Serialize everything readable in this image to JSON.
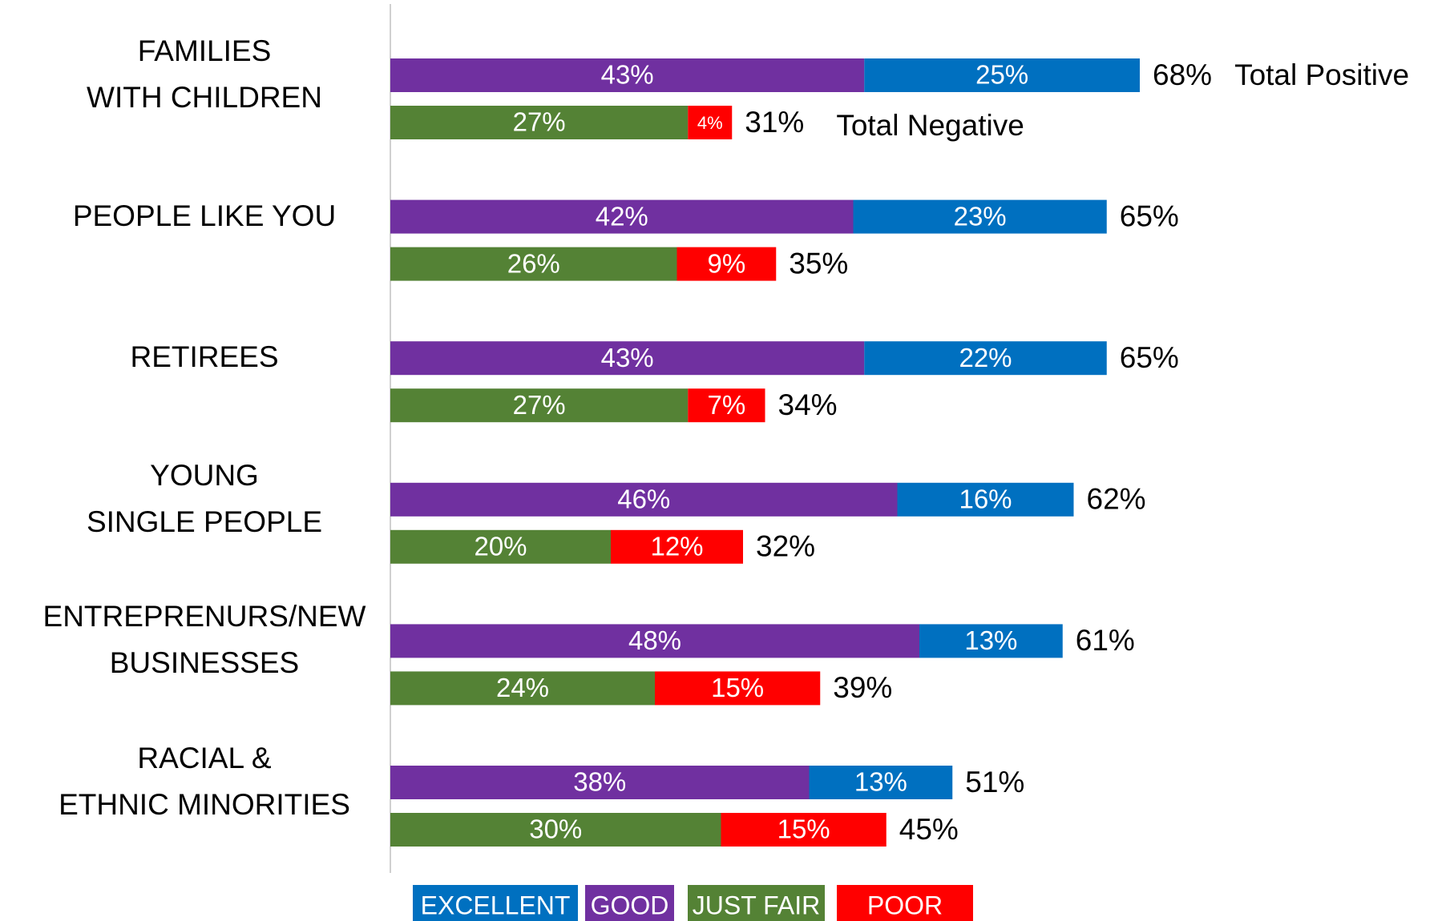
{
  "chart_data": {
    "type": "stacked-bar-pair",
    "categories": [
      "FAMILIES\nWITH CHILDREN",
      "PEOPLE LIKE YOU",
      "RETIREES",
      "YOUNG\nSINGLE PEOPLE",
      "ENTREPRENURS/NEW\nBUSINESSES",
      "RACIAL &\nETHNIC MINORITIES"
    ],
    "series": [
      {
        "name": "EXCELLENT",
        "color": "#0070c0",
        "stack": "positive",
        "values": [
          25,
          23,
          22,
          16,
          13,
          13
        ],
        "value_labels": [
          "25%",
          "23%",
          "22%",
          "16%",
          "13%",
          "13%"
        ]
      },
      {
        "name": "GOOD",
        "color": "#7030a0",
        "stack": "positive",
        "values": [
          43,
          42,
          43,
          46,
          48,
          38
        ],
        "value_labels": [
          "43%",
          "42%",
          "43%",
          "46%",
          "48%",
          "38%"
        ]
      },
      {
        "name": "JUST FAIR",
        "color": "#548235",
        "stack": "negative",
        "values": [
          27,
          26,
          27,
          20,
          24,
          30
        ],
        "value_labels": [
          "27%",
          "26%",
          "27%",
          "20%",
          "24%",
          "30%"
        ]
      },
      {
        "name": "POOR",
        "color": "#ff0000",
        "stack": "negative",
        "values": [
          4,
          9,
          7,
          12,
          15,
          15
        ],
        "value_labels": [
          "4%",
          "9%",
          "7%",
          "12%",
          "15%",
          "15%"
        ]
      }
    ],
    "totals": [
      {
        "name": "Total Positive",
        "stack": "positive",
        "values": [
          68,
          65,
          65,
          62,
          61,
          51
        ],
        "value_labels": [
          "68%",
          "65%",
          "65%",
          "62%",
          "61%",
          "51%"
        ]
      },
      {
        "name": "Total Negative",
        "stack": "negative",
        "values": [
          31,
          35,
          34,
          32,
          39,
          45
        ],
        "value_labels": [
          "31%",
          "35%",
          "34%",
          "32%",
          "39%",
          "45%"
        ]
      }
    ],
    "xlim": [
      0,
      100
    ]
  }
}
